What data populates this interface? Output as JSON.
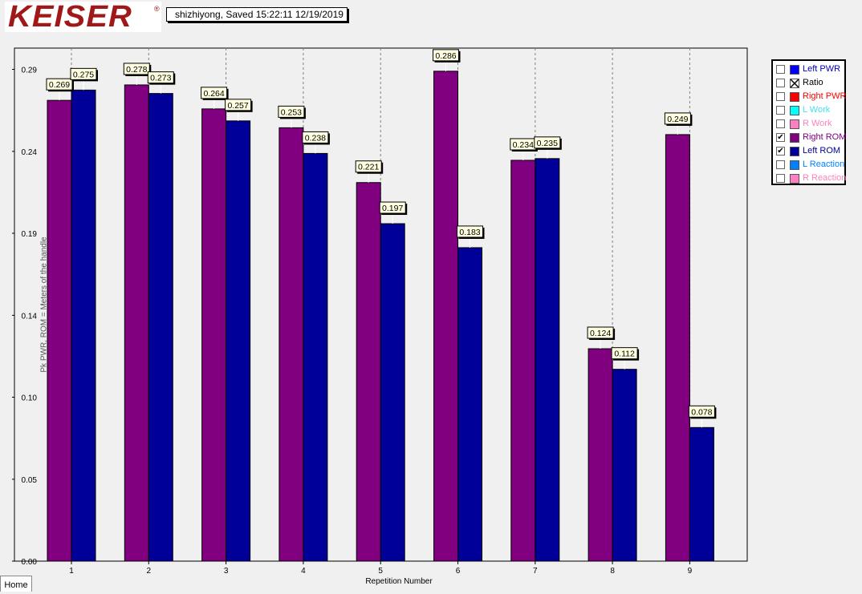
{
  "logo": {
    "text": "KEISER",
    "reg": "®"
  },
  "status": {
    "text": "shizhiyong, Saved  15:22:11 12/19/2019"
  },
  "tabs": {
    "home": "Home"
  },
  "legend": [
    {
      "label": "Left PWR",
      "checked": false,
      "color": "#0000ff",
      "text_color": "#0000c0",
      "pattern": false
    },
    {
      "label": "Ratio",
      "checked": false,
      "color": "#ffffff",
      "text_color": "#000000",
      "pattern": true
    },
    {
      "label": "Right PWR",
      "checked": false,
      "color": "#ff0000",
      "text_color": "#ff0000",
      "pattern": false
    },
    {
      "label": "L Work",
      "checked": false,
      "color": "#00ffff",
      "text_color": "#40e0f0",
      "pattern": false
    },
    {
      "label": "R Work",
      "checked": false,
      "color": "#ff80c0",
      "text_color": "#ff80c0",
      "pattern": false
    },
    {
      "label": "Right ROM",
      "checked": true,
      "color": "#800080",
      "text_color": "#800080",
      "pattern": false
    },
    {
      "label": "Left ROM",
      "checked": true,
      "color": "#000099",
      "text_color": "#000099",
      "pattern": false
    },
    {
      "label": "L Reaction",
      "checked": false,
      "color": "#0080ff",
      "text_color": "#0080ff",
      "pattern": false
    },
    {
      "label": "R Reaction",
      "checked": false,
      "color": "#ff80c0",
      "text_color": "#ff80c0",
      "pattern": false
    }
  ],
  "chart_data": {
    "type": "bar",
    "xlabel": "Repetition Number",
    "ylabel": "Pk PWR, ROM = Meters of the handle",
    "categories": [
      "1",
      "2",
      "3",
      "4",
      "5",
      "6",
      "7",
      "8",
      "9"
    ],
    "series": [
      {
        "name": "Right ROM",
        "color": "#800080",
        "values": [
          0.269,
          0.278,
          0.264,
          0.253,
          0.221,
          0.286,
          0.234,
          0.124,
          0.249
        ]
      },
      {
        "name": "Left ROM",
        "color": "#000099",
        "values": [
          0.275,
          0.273,
          0.257,
          0.238,
          0.197,
          0.183,
          0.235,
          0.112,
          0.078
        ]
      }
    ],
    "labels": [
      [
        "0.269",
        "0.278",
        "0.264",
        "0.253",
        "0.221",
        "0.286",
        "0.234",
        "0.124",
        "0.249"
      ],
      [
        "0.275",
        "0.273",
        "0.257",
        "0.238",
        "0.197",
        "0.183",
        "0.235",
        "0.112",
        "0.078"
      ]
    ],
    "yticks": [
      "0.00",
      "0.05",
      "0.10",
      "0.14",
      "0.19",
      "0.24",
      "0.29"
    ],
    "ytick_values": [
      0.0,
      0.0478,
      0.0957,
      0.1435,
      0.1914,
      0.2392,
      0.2871
    ],
    "ylim": [
      0,
      0.2995
    ],
    "grid": "vertical dashed"
  }
}
